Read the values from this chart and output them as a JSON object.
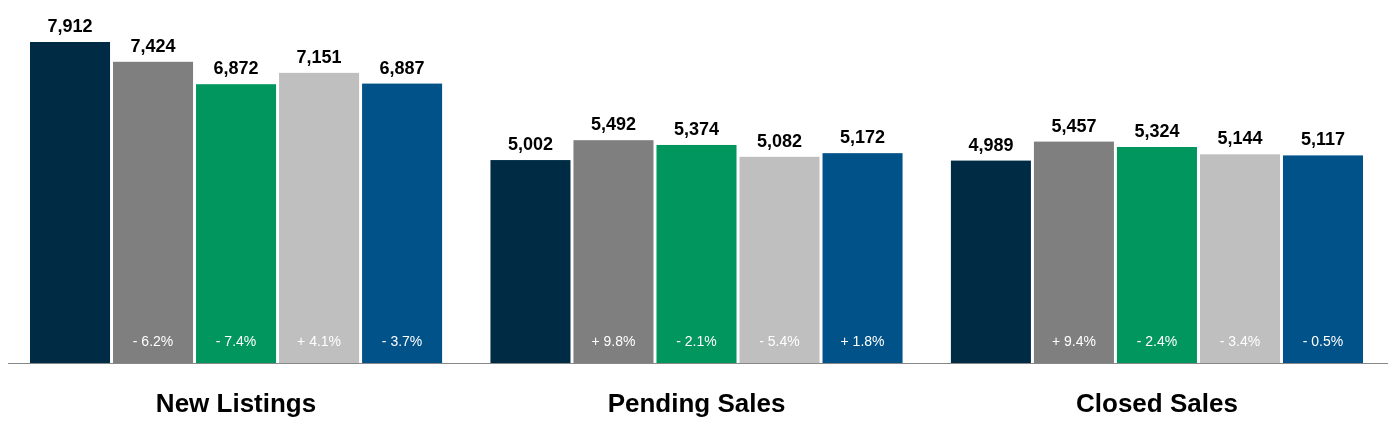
{
  "chart_data": {
    "type": "bar",
    "categories": [
      "New Listings",
      "Pending Sales",
      "Closed Sales"
    ],
    "series": [
      {
        "color": "#002b45",
        "values": [
          7912,
          5002,
          4989
        ],
        "value_labels": [
          "7,912",
          "5,002",
          "4,989"
        ]
      },
      {
        "color": "#7f7f7f",
        "values": [
          7424,
          5492,
          5457
        ],
        "value_labels": [
          "7,424",
          "5,492",
          "5,457"
        ]
      },
      {
        "color": "#00965e",
        "values": [
          6872,
          5374,
          5324
        ],
        "value_labels": [
          "6,872",
          "5,374",
          "5,324"
        ]
      },
      {
        "color": "#bfbfbf",
        "values": [
          7151,
          5082,
          5144
        ],
        "value_labels": [
          "7,151",
          "5,082",
          "5,144"
        ]
      },
      {
        "color": "#005288",
        "values": [
          6887,
          5172,
          5117
        ],
        "value_labels": [
          "6,887",
          "5,172",
          "5,117"
        ]
      }
    ],
    "annotations": [
      "- 6.2%",
      "- 7.4%",
      "+ 4.1%",
      "- 3.7%",
      "+ 9.8%",
      "- 2.1%",
      "- 5.4%",
      "+ 1.8%",
      "+ 9.4%",
      "- 2.4%",
      "- 3.4%",
      "- 0.5%"
    ]
  }
}
